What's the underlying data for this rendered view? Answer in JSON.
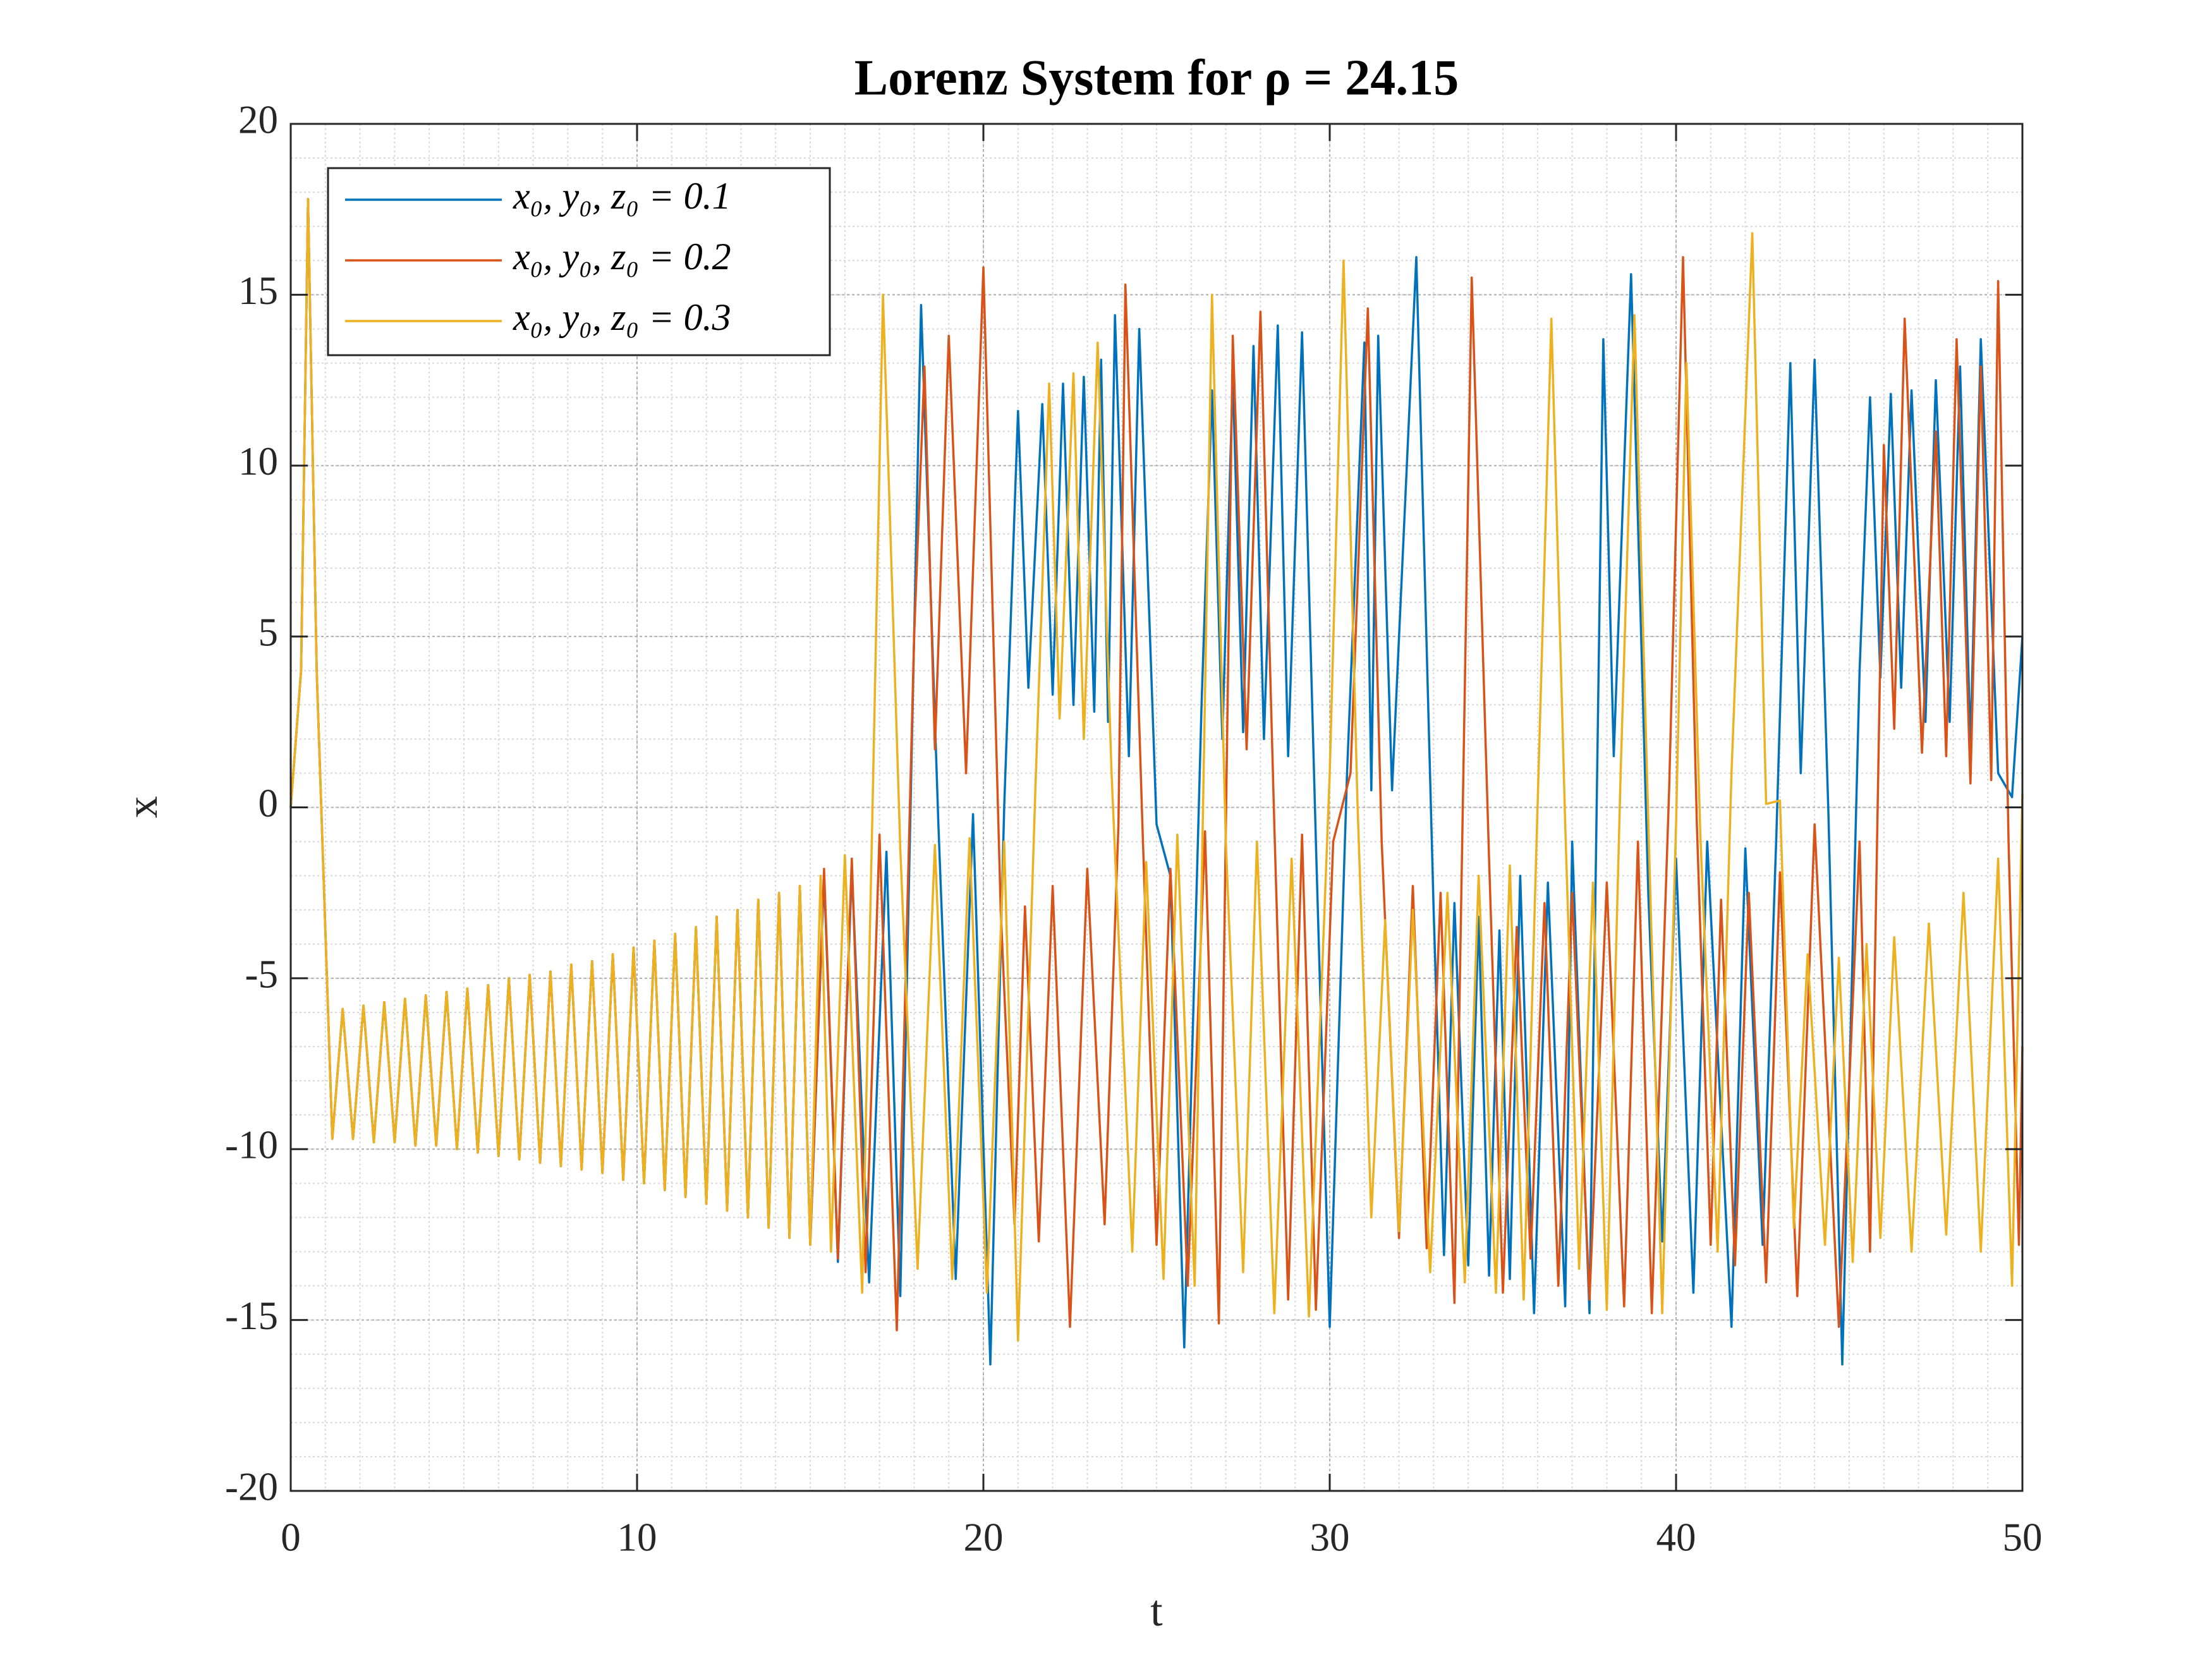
{
  "chart_data": {
    "type": "line",
    "title": "Lorenz System for ρ = 24.15",
    "xlabel": "t",
    "ylabel": "x",
    "xlim": [
      0,
      50
    ],
    "xticks": [
      0,
      10,
      20,
      30,
      40,
      50
    ],
    "ylim": [
      -20,
      20
    ],
    "yticks": [
      -20,
      -15,
      -10,
      -5,
      0,
      5,
      10,
      15,
      20
    ],
    "grid": true,
    "minor_grid_step": 1,
    "legend": "upper left",
    "series": [
      {
        "name": "x₀, y₀, z₀ = 0.1",
        "color": "#0072bd",
        "x": [
          0,
          0.3,
          0.5,
          0.75,
          1.2,
          1.5,
          1.8,
          2.1,
          2.4,
          2.7,
          3.0,
          3.3,
          3.6,
          3.9,
          4.2,
          4.5,
          4.8,
          5.1,
          5.4,
          5.7,
          6.0,
          6.3,
          6.6,
          6.9,
          7.2,
          7.5,
          7.8,
          8.1,
          8.4,
          8.7,
          9.0,
          9.3,
          9.6,
          9.9,
          10.2,
          10.5,
          10.8,
          11.1,
          11.4,
          11.7,
          12.0,
          12.3,
          12.6,
          12.9,
          13.2,
          13.5,
          13.8,
          14.1,
          14.4,
          14.7,
          15.0,
          15.4,
          15.8,
          16.2,
          16.7,
          17.2,
          17.6,
          18.2,
          18.7,
          19.2,
          19.7,
          20.2,
          20.6,
          21.0,
          21.3,
          21.7,
          22.0,
          22.3,
          22.6,
          22.9,
          23.2,
          23.4,
          23.6,
          23.8,
          24.2,
          24.5,
          25.0,
          25.4,
          25.8,
          26.3,
          26.6,
          26.9,
          27.2,
          27.5,
          27.8,
          28.1,
          28.5,
          28.8,
          29.2,
          29.6,
          30.0,
          30.5,
          31.0,
          31.2,
          31.4,
          31.8,
          32.5,
          33.0,
          33.3,
          33.6,
          34.0,
          34.3,
          34.6,
          34.9,
          35.2,
          35.5,
          35.9,
          36.3,
          36.8,
          37.0,
          37.5,
          37.9,
          38.2,
          38.7,
          39.2,
          39.6,
          40.0,
          40.5,
          40.9,
          41.6,
          42.0,
          42.5,
          42.9,
          43.3,
          43.6,
          44.0,
          44.4,
          44.8,
          45.3,
          45.6,
          45.9,
          46.2,
          46.5,
          46.8,
          47.2,
          47.5,
          47.9,
          48.2,
          48.5,
          48.8,
          49.3,
          49.7,
          50
        ],
        "values": [
          0,
          4,
          17.8,
          4,
          -9.7,
          -5.9,
          -9.7,
          -5.8,
          -9.8,
          -5.7,
          -9.8,
          -5.6,
          -9.9,
          -5.5,
          -9.9,
          -5.4,
          -10.0,
          -5.3,
          -10.1,
          -5.2,
          -10.2,
          -5.0,
          -10.3,
          -4.9,
          -10.4,
          -4.8,
          -10.5,
          -4.6,
          -10.6,
          -4.5,
          -10.7,
          -4.3,
          -10.9,
          -4.1,
          -11.0,
          -3.9,
          -11.2,
          -3.7,
          -11.4,
          -3.5,
          -11.6,
          -3.2,
          -11.8,
          -3.0,
          -12.0,
          -2.7,
          -12.3,
          -2.5,
          -12.6,
          -2.3,
          -12.8,
          -2.0,
          -13.3,
          -1.8,
          -13.9,
          -1.3,
          -14.3,
          14.7,
          -0.5,
          -13.8,
          -0.2,
          -16.3,
          0,
          11.6,
          3.5,
          11.8,
          3.3,
          12.4,
          3.0,
          12.6,
          2.8,
          13.1,
          2.5,
          14.4,
          1.5,
          14.0,
          -0.5,
          -2,
          -15.8,
          3,
          12.2,
          2.0,
          12.6,
          2.2,
          13.5,
          2.0,
          14.1,
          1.5,
          13.9,
          -1,
          -15.2,
          1.0,
          13.6,
          0.5,
          13.8,
          0.5,
          16.1,
          -3,
          -13.1,
          -2.8,
          -13.4,
          -3.2,
          -13.7,
          -3.6,
          -13.8,
          -2.0,
          -14.8,
          -2.2,
          -14.6,
          -1.0,
          -14.8,
          13.7,
          1.5,
          15.6,
          -2.6,
          -12.7,
          -1.5,
          -14.2,
          -1.0,
          -15.2,
          -1.2,
          -12.8,
          -0.7,
          13.0,
          1.0,
          13.1,
          -0.2,
          -16.3,
          4,
          12.0,
          3.8,
          12.1,
          3.5,
          12.2,
          2.5,
          12.5,
          2.5,
          12.9,
          1.8,
          13.7,
          1.0,
          0.3,
          5
        ]
      },
      {
        "name": "x₀, y₀, z₀ = 0.2",
        "color": "#d95319",
        "x": [
          0,
          0.3,
          0.5,
          0.75,
          1.2,
          1.5,
          1.8,
          2.1,
          2.4,
          2.7,
          3.0,
          3.3,
          3.6,
          3.9,
          4.2,
          4.5,
          4.8,
          5.1,
          5.4,
          5.7,
          6.0,
          6.3,
          6.6,
          6.9,
          7.2,
          7.5,
          7.8,
          8.1,
          8.4,
          8.7,
          9.0,
          9.3,
          9.6,
          9.9,
          10.2,
          10.5,
          10.8,
          11.1,
          11.4,
          11.7,
          12.0,
          12.3,
          12.6,
          12.9,
          13.2,
          13.5,
          13.8,
          14.1,
          14.4,
          14.7,
          15.0,
          15.4,
          15.8,
          16.2,
          16.6,
          17.0,
          17.5,
          18.0,
          18.3,
          18.6,
          19.0,
          19.5,
          20.0,
          20.5,
          20.9,
          21.2,
          21.6,
          22.0,
          22.5,
          23.0,
          23.5,
          23.9,
          24.1,
          24.6,
          25.0,
          25.4,
          25.9,
          26.4,
          26.8,
          27.2,
          27.6,
          28.0,
          28.4,
          28.8,
          29.2,
          29.6,
          30.1,
          30.6,
          31.1,
          31.5,
          32.0,
          32.4,
          32.8,
          33.2,
          33.6,
          34.1,
          34.6,
          35.0,
          35.4,
          35.8,
          36.2,
          36.6,
          37.0,
          37.5,
          38.0,
          38.5,
          38.9,
          39.3,
          39.8,
          40.2,
          40.6,
          41.0,
          41.3,
          41.7,
          42.1,
          42.6,
          43.0,
          43.5,
          44.0,
          44.7,
          45.3,
          45.6,
          46.0,
          46.3,
          46.6,
          47.1,
          47.5,
          47.8,
          48.1,
          48.5,
          48.8,
          49.1,
          49.3,
          49.6,
          49.9,
          50
        ],
        "values": [
          0,
          4,
          17.8,
          4,
          -9.7,
          -5.9,
          -9.7,
          -5.8,
          -9.8,
          -5.7,
          -9.8,
          -5.6,
          -9.9,
          -5.5,
          -9.9,
          -5.4,
          -10.0,
          -5.3,
          -10.1,
          -5.2,
          -10.2,
          -5.0,
          -10.3,
          -4.9,
          -10.4,
          -4.8,
          -10.5,
          -4.6,
          -10.6,
          -4.5,
          -10.7,
          -4.3,
          -10.9,
          -4.1,
          -11.0,
          -3.9,
          -11.2,
          -3.7,
          -11.4,
          -3.5,
          -11.6,
          -3.2,
          -11.8,
          -3.0,
          -12.0,
          -2.7,
          -12.3,
          -2.5,
          -12.6,
          -2.3,
          -12.8,
          -1.8,
          -13.2,
          -1.5,
          -13.6,
          -0.8,
          -15.3,
          5,
          12.9,
          1.7,
          13.8,
          1.0,
          15.8,
          -3,
          -12.2,
          -2.9,
          -12.7,
          -2.3,
          -15.2,
          -1.8,
          -12.2,
          -0.5,
          15.3,
          -0.8,
          -12.8,
          -1.8,
          -14,
          -0.7,
          -15.1,
          13.8,
          1.7,
          14.5,
          -0.5,
          -14.4,
          -0.8,
          -14.7,
          -1.0,
          1.0,
          14.6,
          -1,
          -12.6,
          -2.3,
          -12.9,
          -2.5,
          -14.5,
          15.5,
          -1.5,
          -14.2,
          -3.5,
          -13.2,
          -2.8,
          -14.0,
          -2.5,
          -14.4,
          -2.2,
          -14.6,
          -1.0,
          -14.8,
          0.5,
          16.1,
          -0.5,
          -12.8,
          -2.7,
          -13.4,
          -2.5,
          -13.9,
          -1.9,
          -14.3,
          -0.5,
          -15.2,
          -1,
          -13,
          10.6,
          2.3,
          14.3,
          1.6,
          11.0,
          1.5,
          13.7,
          0.7,
          12.9,
          0.8,
          15.4,
          -1,
          -12.8,
          -7
        ]
      },
      {
        "name": "x₀, y₀, z₀ = 0.3",
        "color": "#edb120",
        "x": [
          0,
          0.3,
          0.5,
          0.75,
          1.2,
          1.5,
          1.8,
          2.1,
          2.4,
          2.7,
          3.0,
          3.3,
          3.6,
          3.9,
          4.2,
          4.5,
          4.8,
          5.1,
          5.4,
          5.7,
          6.0,
          6.3,
          6.6,
          6.9,
          7.2,
          7.5,
          7.8,
          8.1,
          8.4,
          8.7,
          9.0,
          9.3,
          9.6,
          9.9,
          10.2,
          10.5,
          10.8,
          11.1,
          11.4,
          11.7,
          12.0,
          12.3,
          12.6,
          12.9,
          13.2,
          13.5,
          13.8,
          14.1,
          14.4,
          14.7,
          15.0,
          15.3,
          15.6,
          16.0,
          16.5,
          16.8,
          17.1,
          17.6,
          18.1,
          18.6,
          19.1,
          19.6,
          20.1,
          20.6,
          21.0,
          21.5,
          21.9,
          22.2,
          22.6,
          22.9,
          23.3,
          23.7,
          24.3,
          24.7,
          25.2,
          25.6,
          26.1,
          26.6,
          27.0,
          27.5,
          27.9,
          28.4,
          28.9,
          29.4,
          30.0,
          30.4,
          30.8,
          31.2,
          31.6,
          32.0,
          32.4,
          32.9,
          33.4,
          33.9,
          34.3,
          34.8,
          35.2,
          35.6,
          36.0,
          36.4,
          36.8,
          37.2,
          37.6,
          38.0,
          38.4,
          38.8,
          39.2,
          39.6,
          40.0,
          40.3,
          40.7,
          41.2,
          41.6,
          42.2,
          42.6,
          43.0,
          43.4,
          43.8,
          44.3,
          44.7,
          45.1,
          45.5,
          45.9,
          46.3,
          46.8,
          47.3,
          47.8,
          48.3,
          48.8,
          49.3,
          49.7,
          50
        ],
        "values": [
          0,
          4,
          17.8,
          4,
          -9.7,
          -5.9,
          -9.7,
          -5.8,
          -9.8,
          -5.7,
          -9.8,
          -5.6,
          -9.9,
          -5.5,
          -9.9,
          -5.4,
          -10.0,
          -5.3,
          -10.1,
          -5.2,
          -10.2,
          -5.0,
          -10.3,
          -4.9,
          -10.4,
          -4.8,
          -10.5,
          -4.6,
          -10.6,
          -4.5,
          -10.7,
          -4.3,
          -10.9,
          -4.1,
          -11.0,
          -3.9,
          -11.2,
          -3.7,
          -11.4,
          -3.5,
          -11.6,
          -3.2,
          -11.8,
          -3.0,
          -12.0,
          -2.7,
          -12.3,
          -2.5,
          -12.6,
          -2.3,
          -12.8,
          -2.0,
          -13.0,
          -1.4,
          -14.2,
          0,
          15.0,
          -1.2,
          -13.5,
          -1.1,
          -13.8,
          -0.9,
          -14.2,
          -1.0,
          -15.6,
          0.5,
          12.4,
          2.6,
          12.7,
          2.0,
          13.6,
          1.0,
          -13,
          -1.6,
          -13.8,
          -0.8,
          -14.0,
          15.0,
          -1.0,
          -13.6,
          -1.0,
          -14.8,
          -1.5,
          -14.9,
          1.0,
          16.0,
          0.2,
          -12.0,
          -3.3,
          -12.4,
          -3.0,
          -13.6,
          -2.5,
          -13.9,
          -2.0,
          -14.2,
          -1.7,
          -14.4,
          0,
          14.3,
          -0.5,
          -13.5,
          -2.2,
          -14.7,
          1.0,
          14.4,
          -0.5,
          -14.8,
          -0.5,
          13.0,
          -0.8,
          -13.0,
          1,
          16.8,
          0.1,
          0.2,
          -12.3,
          -4.3,
          -12.8,
          -4.4,
          -13.3,
          -4.0,
          -12.6,
          -3.8,
          -13.0,
          -3.4,
          -12.5,
          -2.5,
          -13.0,
          -1.5,
          -14.0,
          0.4
        ]
      }
    ]
  }
}
